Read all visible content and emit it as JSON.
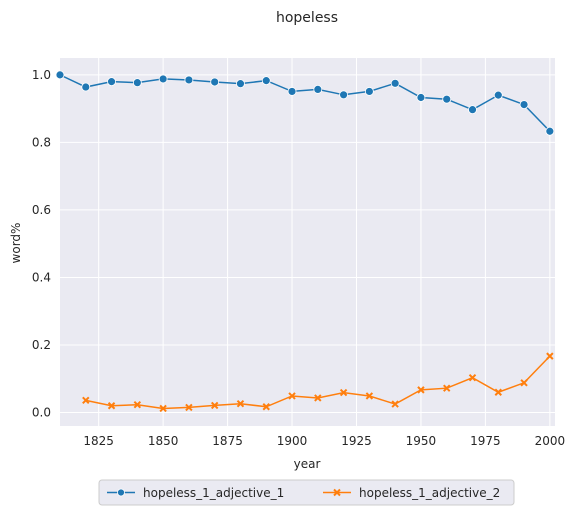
{
  "chart_data": {
    "type": "line",
    "title": "hopeless",
    "xlabel": "year",
    "ylabel": "word%",
    "xlim": [
      1810,
      2002
    ],
    "ylim": [
      -0.04,
      1.05
    ],
    "xticks": [
      1825,
      1850,
      1875,
      1900,
      1925,
      1950,
      1975,
      2000
    ],
    "yticks": [
      0.0,
      0.2,
      0.4,
      0.6,
      0.8,
      1.0
    ],
    "xtick_labels": [
      "1825",
      "1850",
      "1875",
      "1900",
      "1925",
      "1950",
      "1975",
      "2000"
    ],
    "ytick_labels": [
      "0.0",
      "0.2",
      "0.4",
      "0.6",
      "0.8",
      "1.0"
    ],
    "grid": true,
    "legend_position": "bottom-center",
    "series": [
      {
        "name": "hopeless_1_adjective_1",
        "color": "#1f77b4",
        "marker": "circle",
        "x": [
          1810,
          1820,
          1830,
          1840,
          1850,
          1860,
          1870,
          1880,
          1890,
          1900,
          1910,
          1920,
          1930,
          1940,
          1950,
          1960,
          1970,
          1980,
          1990,
          2000
        ],
        "y": [
          1.0,
          0.964,
          0.98,
          0.977,
          0.988,
          0.985,
          0.979,
          0.974,
          0.983,
          0.951,
          0.957,
          0.941,
          0.951,
          0.975,
          0.933,
          0.928,
          0.897,
          0.94,
          0.912,
          0.833
        ]
      },
      {
        "name": "hopeless_1_adjective_2",
        "color": "#ff7f0e",
        "marker": "x",
        "x": [
          1820,
          1830,
          1840,
          1850,
          1860,
          1870,
          1880,
          1890,
          1900,
          1910,
          1920,
          1930,
          1940,
          1950,
          1960,
          1970,
          1980,
          1990,
          2000
        ],
        "y": [
          0.036,
          0.02,
          0.023,
          0.012,
          0.015,
          0.021,
          0.026,
          0.017,
          0.049,
          0.043,
          0.059,
          0.049,
          0.025,
          0.067,
          0.072,
          0.103,
          0.06,
          0.088,
          0.167
        ]
      }
    ]
  }
}
